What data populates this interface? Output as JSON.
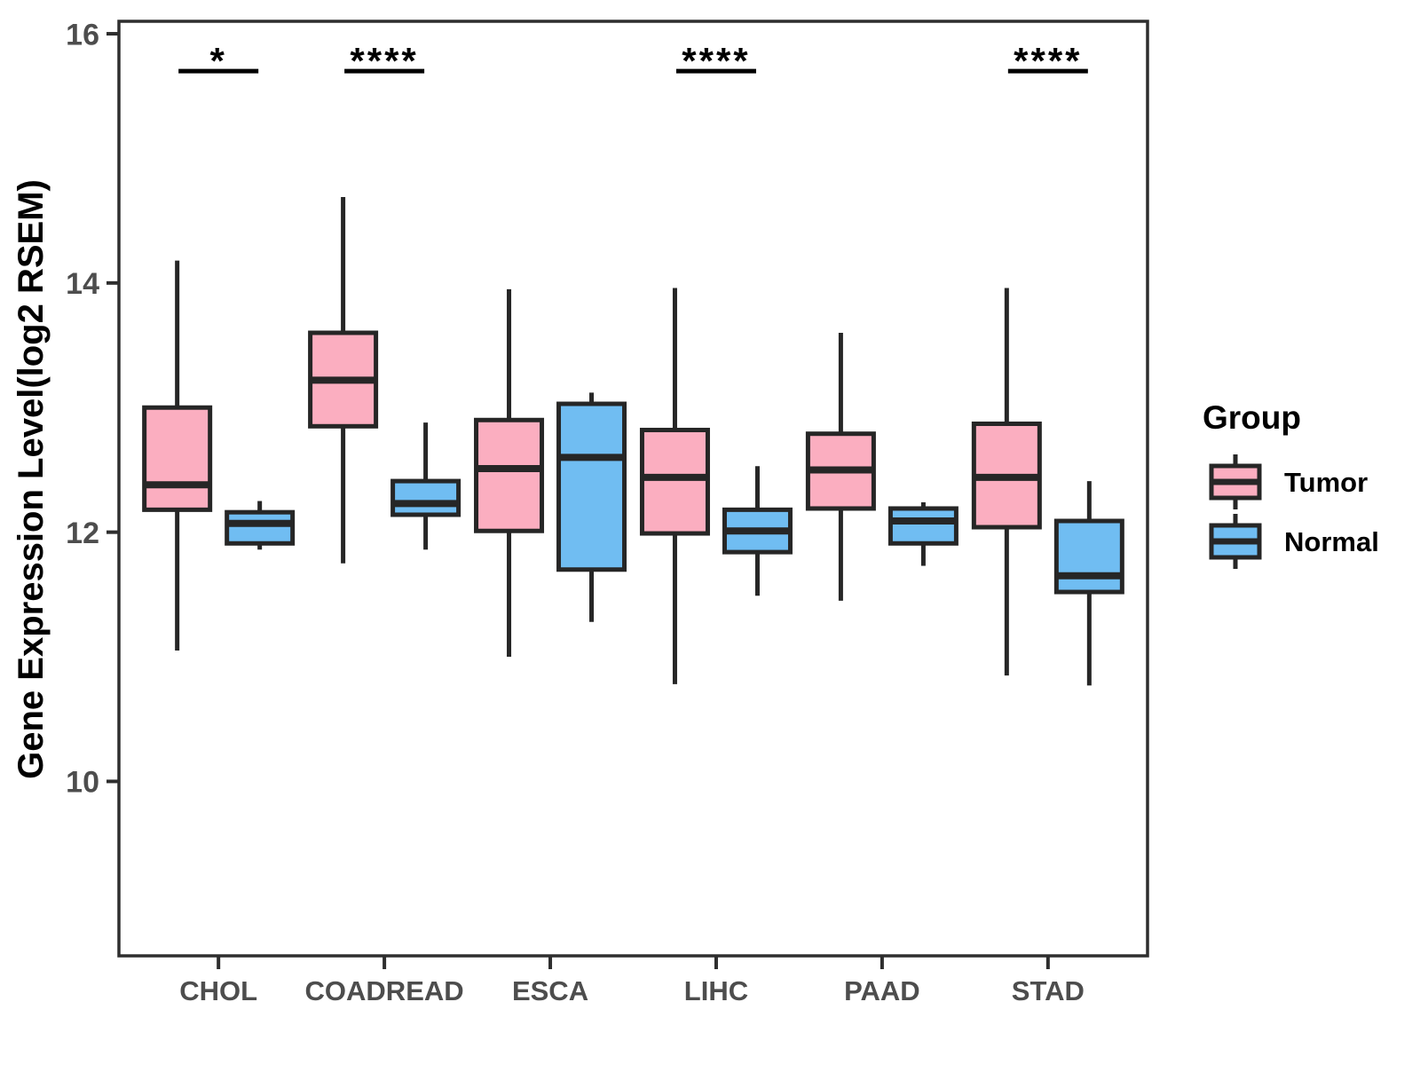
{
  "chart_data": {
    "type": "boxplot",
    "title": "",
    "xlabel": "",
    "ylabel": "Gene Expression Level(log2 RSEM)",
    "ylim": [
      8.6,
      16.1
    ],
    "yticks": [
      10,
      12,
      14,
      16
    ],
    "grid": false,
    "categories": [
      "CHOL",
      "COADREAD",
      "ESCA",
      "LIHC",
      "PAAD",
      "STAD"
    ],
    "groups": [
      "Tumor",
      "Normal"
    ],
    "colors": {
      "Tumor": "#FBAEC0",
      "Normal": "#70BDF2"
    },
    "boxes": [
      {
        "category": "CHOL",
        "group": "Tumor",
        "whisker_low": 11.05,
        "q1": 12.18,
        "median": 12.38,
        "q3": 13.0,
        "whisker_high": 14.18
      },
      {
        "category": "CHOL",
        "group": "Normal",
        "whisker_low": 11.86,
        "q1": 11.91,
        "median": 12.07,
        "q3": 12.16,
        "whisker_high": 12.25
      },
      {
        "category": "COADREAD",
        "group": "Tumor",
        "whisker_low": 11.75,
        "q1": 12.85,
        "median": 13.22,
        "q3": 13.6,
        "whisker_high": 14.69
      },
      {
        "category": "COADREAD",
        "group": "Normal",
        "whisker_low": 11.86,
        "q1": 12.14,
        "median": 12.23,
        "q3": 12.41,
        "whisker_high": 12.88
      },
      {
        "category": "ESCA",
        "group": "Tumor",
        "whisker_low": 11.0,
        "q1": 12.01,
        "median": 12.51,
        "q3": 12.9,
        "whisker_high": 13.95
      },
      {
        "category": "ESCA",
        "group": "Normal",
        "whisker_low": 11.28,
        "q1": 11.7,
        "median": 12.6,
        "q3": 13.03,
        "whisker_high": 13.12
      },
      {
        "category": "LIHC",
        "group": "Tumor",
        "whisker_low": 10.78,
        "q1": 11.99,
        "median": 12.44,
        "q3": 12.82,
        "whisker_high": 13.96
      },
      {
        "category": "LIHC",
        "group": "Normal",
        "whisker_low": 11.49,
        "q1": 11.84,
        "median": 12.01,
        "q3": 12.18,
        "whisker_high": 12.53
      },
      {
        "category": "PAAD",
        "group": "Tumor",
        "whisker_low": 11.45,
        "q1": 12.19,
        "median": 12.5,
        "q3": 12.79,
        "whisker_high": 13.6
      },
      {
        "category": "PAAD",
        "group": "Normal",
        "whisker_low": 11.73,
        "q1": 11.91,
        "median": 12.09,
        "q3": 12.19,
        "whisker_high": 12.24
      },
      {
        "category": "STAD",
        "group": "Tumor",
        "whisker_low": 10.85,
        "q1": 12.04,
        "median": 12.44,
        "q3": 12.87,
        "whisker_high": 13.96
      },
      {
        "category": "STAD",
        "group": "Normal",
        "whisker_low": 10.77,
        "q1": 11.52,
        "median": 11.65,
        "q3": 12.09,
        "whisker_high": 12.41
      }
    ],
    "significance": [
      {
        "category": "CHOL",
        "label": "*"
      },
      {
        "category": "COADREAD",
        "label": "****"
      },
      {
        "category": "LIHC",
        "label": "****"
      },
      {
        "category": "STAD",
        "label": "****"
      }
    ],
    "significance_y": 15.7,
    "legend": {
      "title": "Group",
      "position": "right",
      "entries": [
        {
          "label": "Tumor",
          "color": "#FBAEC0"
        },
        {
          "label": "Normal",
          "color": "#70BDF2"
        }
      ]
    }
  }
}
